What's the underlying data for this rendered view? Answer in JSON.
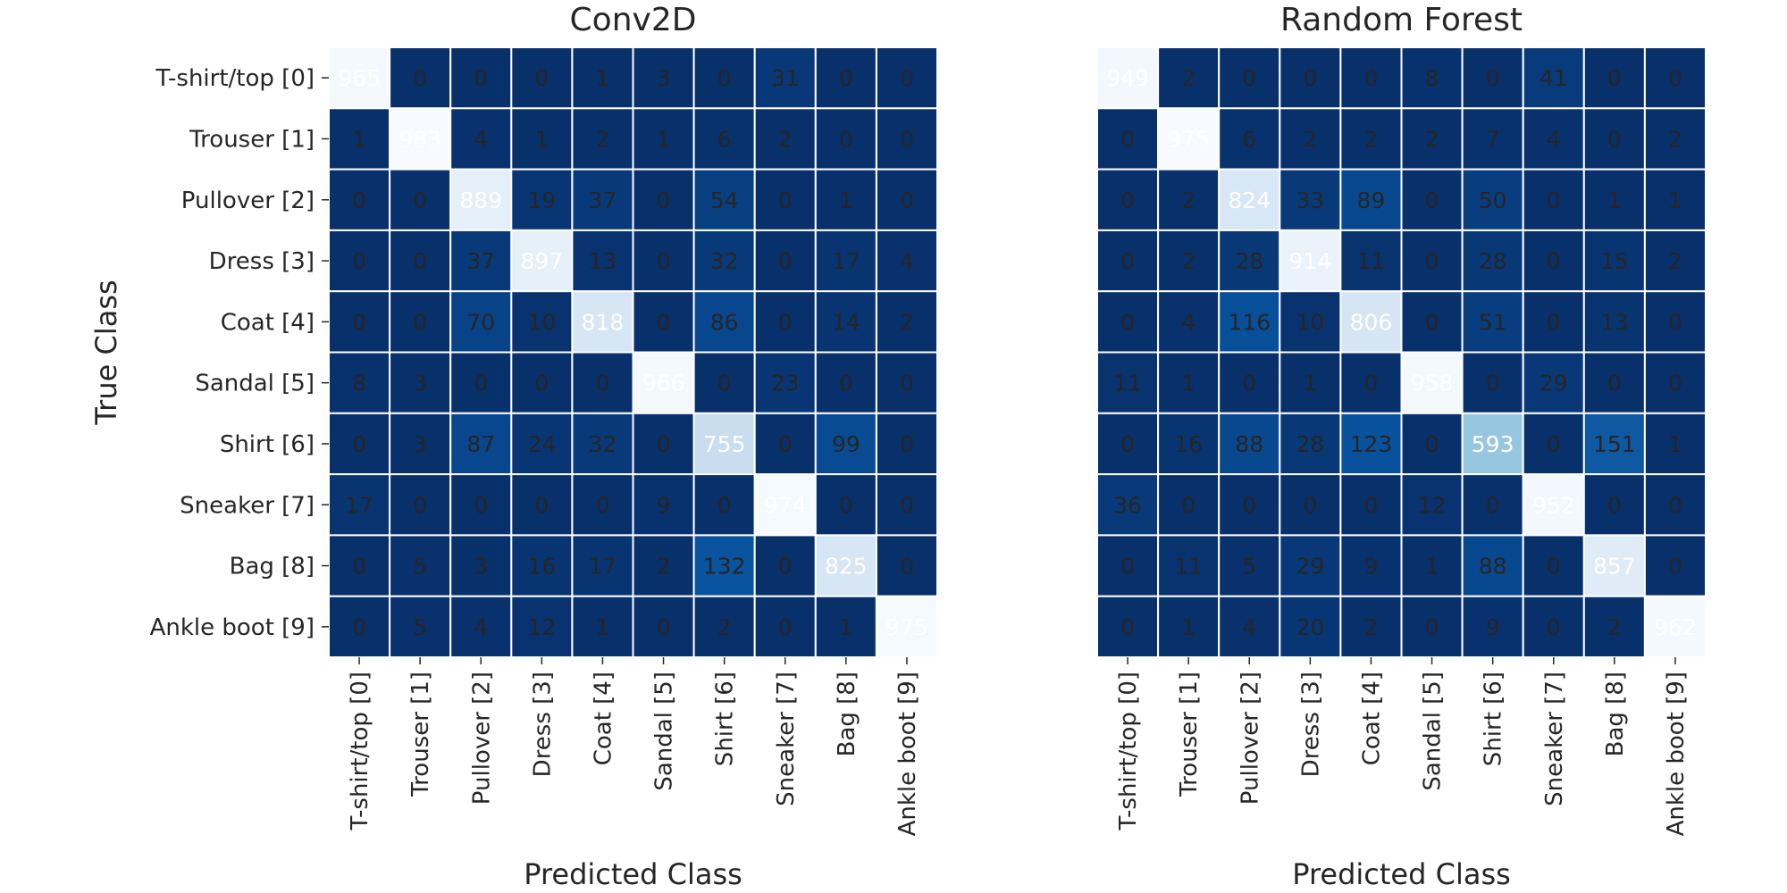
{
  "chart_data": [
    {
      "type": "heatmap",
      "title": "Conv2D",
      "xlabel": "Predicted Class",
      "ylabel": "True Class",
      "x_categories": [
        "T-shirt/top [0]",
        "Trouser [1]",
        "Pullover [2]",
        "Dress [3]",
        "Coat [4]",
        "Sandal [5]",
        "Shirt [6]",
        "Sneaker [7]",
        "Bag [8]",
        "Ankle boot [9]"
      ],
      "y_categories": [
        "T-shirt/top [0]",
        "Trouser [1]",
        "Pullover [2]",
        "Dress [3]",
        "Coat [4]",
        "Sandal [5]",
        "Shirt [6]",
        "Sneaker [7]",
        "Bag [8]",
        "Ankle boot [9]"
      ],
      "values": [
        [
          965,
          0,
          0,
          0,
          1,
          3,
          0,
          31,
          0,
          0
        ],
        [
          1,
          983,
          4,
          1,
          2,
          1,
          6,
          2,
          0,
          0
        ],
        [
          0,
          0,
          889,
          19,
          37,
          0,
          54,
          0,
          1,
          0
        ],
        [
          0,
          0,
          37,
          897,
          13,
          0,
          32,
          0,
          17,
          4
        ],
        [
          0,
          0,
          70,
          10,
          818,
          0,
          86,
          0,
          14,
          2
        ],
        [
          8,
          3,
          0,
          0,
          0,
          966,
          0,
          23,
          0,
          0
        ],
        [
          0,
          3,
          87,
          24,
          32,
          0,
          755,
          0,
          99,
          0
        ],
        [
          17,
          0,
          0,
          0,
          0,
          9,
          0,
          974,
          0,
          0
        ],
        [
          0,
          5,
          3,
          16,
          17,
          2,
          132,
          0,
          825,
          0
        ],
        [
          0,
          5,
          4,
          12,
          1,
          0,
          2,
          0,
          1,
          975
        ]
      ],
      "colormap": "Blues_reversed",
      "grid": false,
      "legend": "none"
    },
    {
      "type": "heatmap",
      "title": "Random Forest",
      "xlabel": "Predicted Class",
      "ylabel": "",
      "x_categories": [
        "T-shirt/top [0]",
        "Trouser [1]",
        "Pullover [2]",
        "Dress [3]",
        "Coat [4]",
        "Sandal [5]",
        "Shirt [6]",
        "Sneaker [7]",
        "Bag [8]",
        "Ankle boot [9]"
      ],
      "y_categories": [],
      "values": [
        [
          949,
          2,
          0,
          0,
          0,
          8,
          0,
          41,
          0,
          0
        ],
        [
          0,
          975,
          6,
          2,
          2,
          2,
          7,
          4,
          0,
          2
        ],
        [
          0,
          2,
          824,
          33,
          89,
          0,
          50,
          0,
          1,
          1
        ],
        [
          0,
          2,
          28,
          914,
          11,
          0,
          28,
          0,
          15,
          2
        ],
        [
          0,
          4,
          116,
          10,
          806,
          0,
          51,
          0,
          13,
          0
        ],
        [
          11,
          1,
          0,
          1,
          0,
          958,
          0,
          29,
          0,
          0
        ],
        [
          0,
          16,
          88,
          28,
          123,
          0,
          593,
          0,
          151,
          1
        ],
        [
          36,
          0,
          0,
          0,
          0,
          12,
          0,
          952,
          0,
          0
        ],
        [
          0,
          11,
          5,
          29,
          9,
          1,
          88,
          0,
          857,
          0
        ],
        [
          0,
          1,
          4,
          20,
          2,
          0,
          9,
          0,
          2,
          962
        ]
      ],
      "colormap": "Blues_reversed",
      "grid": false,
      "legend": "none"
    }
  ]
}
